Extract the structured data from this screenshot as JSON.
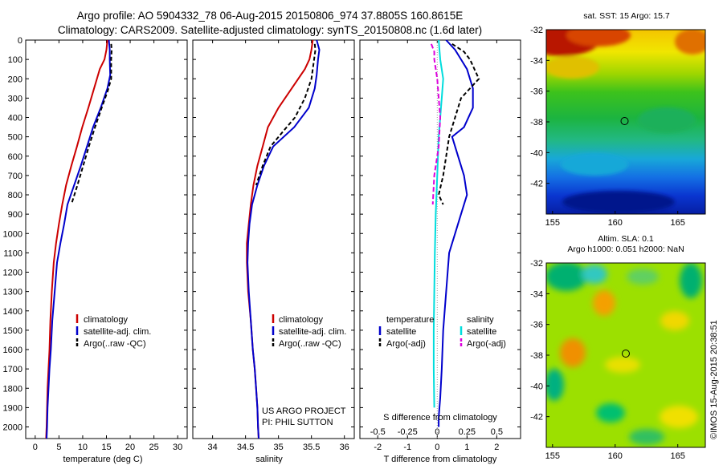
{
  "title_line1": "Argo profile: AO 5904332_78 06-Aug-2015 20150806_974 37.8805S 160.8615E",
  "title_line2": "Climatology: CARS2009. Satellite-adjusted climatology: synTS_20150808.nc (1.6d later)",
  "footer_stamp": "©IMOS 15-Aug-2015 20:38:51",
  "project_line1": "US ARGO PROJECT",
  "project_line2": "PI: PHIL SUTTON",
  "colors": {
    "red": "#cc0000",
    "blue": "#0000cc",
    "black": "#000000",
    "cyan": "#00dddd",
    "magenta": "#dd00dd"
  },
  "chart_data": [
    {
      "id": "temperature",
      "type": "line",
      "xlabel": "temperature (deg C)",
      "ylabel": "",
      "xlim": [
        -2,
        32
      ],
      "ylim": [
        2060,
        0
      ],
      "xticks": [
        0,
        5,
        10,
        15,
        20,
        25,
        30
      ],
      "yticks": [
        0,
        100,
        200,
        300,
        400,
        500,
        600,
        700,
        800,
        900,
        1000,
        1100,
        1200,
        1300,
        1400,
        1500,
        1600,
        1700,
        1800,
        1900,
        2000
      ],
      "legend": [
        "climatology",
        "satellite-adj. clim.",
        "Argo(..raw -QC)"
      ],
      "legend_placement": "bottom-left",
      "series": [
        {
          "name": "climatology",
          "color": "red",
          "dash": "",
          "x": [
            15.2,
            15.0,
            14.6,
            13.6,
            12.4,
            11.2,
            9.9,
            8.8,
            7.6,
            6.5,
            5.7,
            5.0,
            4.4,
            3.9,
            3.5,
            3.2,
            3.0,
            2.8,
            2.6,
            2.5,
            2.4,
            2.3
          ],
          "y": [
            0,
            50,
            100,
            150,
            250,
            350,
            450,
            550,
            650,
            750,
            850,
            950,
            1050,
            1150,
            1300,
            1450,
            1600,
            1700,
            1800,
            1900,
            2000,
            2060
          ]
        },
        {
          "name": "satellite-adj. clim.",
          "color": "blue",
          "dash": "",
          "x": [
            15.5,
            15.7,
            15.7,
            15.8,
            15.2,
            13.8,
            12.2,
            10.9,
            9.6,
            8.2,
            6.8,
            6.1,
            5.3,
            4.6,
            4.1,
            3.6,
            3.3,
            3.0,
            2.8,
            2.6,
            2.5,
            2.4
          ],
          "y": [
            0,
            50,
            100,
            180,
            250,
            350,
            450,
            550,
            650,
            750,
            850,
            950,
            1050,
            1150,
            1300,
            1450,
            1600,
            1700,
            1800,
            1900,
            2000,
            2060
          ]
        },
        {
          "name": "Argo(..raw -QC)",
          "color": "black",
          "dash": "5,3",
          "x": [
            16.0,
            16.1,
            16.0,
            16.0,
            15.3,
            14.0,
            12.6,
            11.3,
            10.1,
            8.9,
            7.6
          ],
          "y": [
            20,
            50,
            100,
            200,
            260,
            350,
            450,
            550,
            650,
            750,
            850
          ]
        }
      ]
    },
    {
      "id": "salinity",
      "type": "line",
      "xlabel": "salinity",
      "ylabel": "",
      "xlim": [
        33.7,
        36.15
      ],
      "ylim": [
        2060,
        0
      ],
      "xticks": [
        34,
        34.5,
        35,
        35.5,
        36
      ],
      "legend": [
        "climatology",
        "satellite-adj. clim.",
        "Argo(..raw -QC)"
      ],
      "legend_placement": "bottom-center",
      "series": [
        {
          "name": "climatology",
          "color": "red",
          "dash": "",
          "x": [
            35.52,
            35.5,
            35.47,
            35.4,
            35.2,
            35.0,
            34.84,
            34.76,
            34.68,
            34.62,
            34.58,
            34.55,
            34.52,
            34.52,
            34.54,
            34.58,
            34.61,
            34.64,
            34.66,
            34.68,
            34.69,
            34.7
          ],
          "y": [
            0,
            50,
            100,
            150,
            250,
            350,
            450,
            550,
            650,
            750,
            850,
            950,
            1050,
            1150,
            1300,
            1450,
            1600,
            1700,
            1800,
            1900,
            2000,
            2060
          ]
        },
        {
          "name": "satellite-adj. clim.",
          "color": "blue",
          "dash": "",
          "x": [
            35.58,
            35.62,
            35.6,
            35.58,
            35.55,
            35.46,
            35.24,
            34.92,
            34.78,
            34.68,
            34.6,
            34.56,
            34.54,
            34.53,
            34.55,
            34.58,
            34.61,
            34.64,
            34.66,
            34.68,
            34.69,
            34.7
          ],
          "y": [
            0,
            50,
            100,
            180,
            250,
            350,
            450,
            550,
            650,
            750,
            850,
            950,
            1050,
            1150,
            1300,
            1450,
            1600,
            1700,
            1800,
            1900,
            2000,
            2060
          ]
        },
        {
          "name": "Argo(..raw -QC)",
          "color": "black",
          "dash": "5,3",
          "x": [
            35.55,
            35.56,
            35.54,
            35.5,
            35.4,
            35.25,
            35.05,
            34.88,
            34.76,
            34.66
          ],
          "y": [
            20,
            50,
            100,
            200,
            300,
            400,
            480,
            550,
            650,
            750
          ]
        }
      ]
    },
    {
      "id": "difference",
      "type": "line",
      "xlabel": "T difference from climatology",
      "xlabel_top": "S difference from climatology",
      "xlim": [
        -2.6,
        2.8
      ],
      "ylim": [
        2060,
        0
      ],
      "xticks": [
        -2,
        -1,
        0,
        1,
        2
      ],
      "xticks_top": [
        -0.5,
        -0.25,
        0,
        0.25,
        0.5
      ],
      "legend_left_header": "temperature",
      "legend_right_header": "salinity",
      "legend": [
        "satellite",
        "Argo(-adj)",
        "satellite",
        "Argo(-adj)"
      ],
      "legend_placement": "bottom",
      "series": [
        {
          "name": "temperature satellite",
          "color": "blue",
          "dash": "",
          "x": [
            0.3,
            0.6,
            0.8,
            1.0,
            1.2,
            1.2,
            0.9,
            0.5,
            0.7,
            0.9,
            1.0,
            0.8,
            0.6,
            0.4,
            0.3,
            0.2,
            0.15,
            0.1,
            0.05,
            0.05
          ],
          "y": [
            0,
            50,
            100,
            150,
            250,
            350,
            450,
            500,
            600,
            700,
            800,
            900,
            1000,
            1100,
            1300,
            1500,
            1700,
            1850,
            1950,
            2000
          ]
        },
        {
          "name": "temperature Argo(-adj)",
          "color": "black",
          "dash": "5,3",
          "x": [
            0.5,
            0.9,
            1.1,
            1.4,
            0.8,
            0.6,
            0.4,
            0.3,
            0.2,
            0.05,
            0.2
          ],
          "y": [
            20,
            60,
            100,
            200,
            300,
            400,
            500,
            600,
            700,
            800,
            850
          ]
        },
        {
          "name": "salinity satellite",
          "color": "cyan",
          "dash": "",
          "x": [
            0.05,
            0.1,
            0.2,
            0.15,
            0.1,
            0.05,
            0.0,
            -0.05,
            -0.08,
            -0.1,
            -0.12,
            -0.12,
            -0.1
          ],
          "y": [
            0,
            100,
            200,
            300,
            400,
            500,
            700,
            900,
            1100,
            1300,
            1500,
            1700,
            1900
          ]
        },
        {
          "name": "salinity Argo(-adj)",
          "color": "magenta",
          "dash": "6,3",
          "x": [
            -0.2,
            -0.1,
            -0.1,
            0.0,
            0.05,
            0.1,
            0.05,
            -0.1,
            -0.15
          ],
          "y": [
            20,
            60,
            100,
            200,
            300,
            400,
            550,
            700,
            850
          ]
        }
      ]
    },
    {
      "id": "sst_map",
      "type": "heatmap",
      "title": "sat. SST: 15 Argo: 15.7",
      "xlim": [
        154.5,
        167.2
      ],
      "ylim": [
        -44,
        -32
      ],
      "xticks": [
        155,
        160,
        165
      ],
      "yticks": [
        -32,
        -34,
        -36,
        -38,
        -40,
        -42
      ],
      "marker": {
        "lon": 160.86,
        "lat": -37.88
      }
    },
    {
      "id": "sla_map",
      "type": "heatmap",
      "title_line1": "Altim. SLA: 0.1",
      "title_line2": "Argo h1000: 0.051 h2000: NaN",
      "xlim": [
        154.5,
        167.2
      ],
      "ylim": [
        -44,
        -32
      ],
      "xticks": [
        155,
        160,
        165
      ],
      "yticks": [
        -32,
        -34,
        -36,
        -38,
        -40,
        -42
      ],
      "marker": {
        "lon": 160.86,
        "lat": -37.88
      }
    }
  ]
}
